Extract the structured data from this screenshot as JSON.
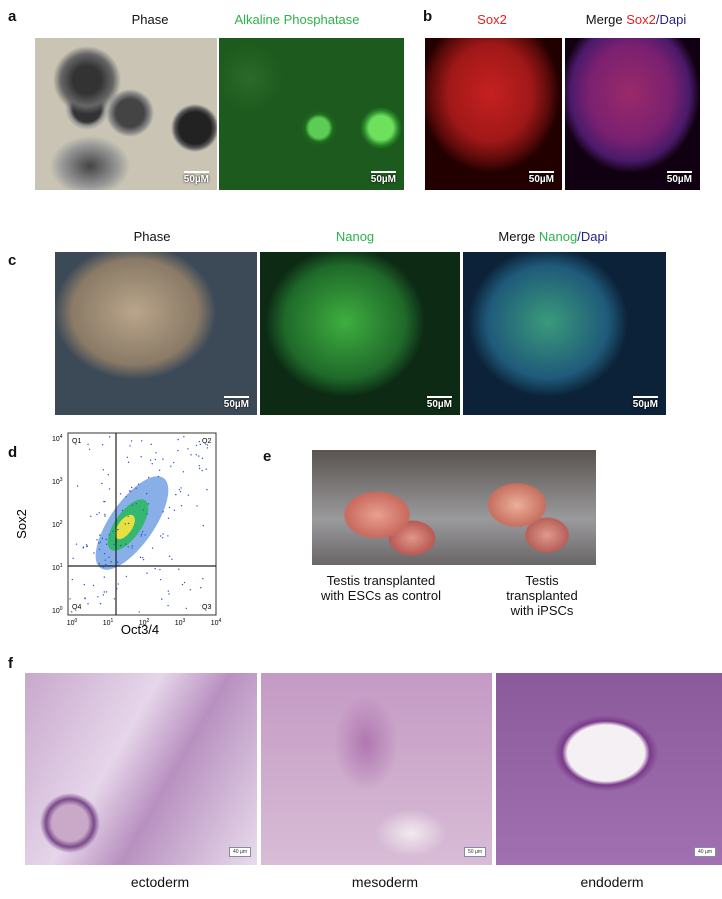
{
  "panels": {
    "a": {
      "label": "a",
      "titles": [
        "Phase",
        "Alkaline Phosphatase"
      ],
      "scale": [
        "50µM",
        "50µM"
      ]
    },
    "b": {
      "label": "b",
      "title1": "Sox2",
      "merge": "Merge",
      "merge_red": "Sox2",
      "merge_blue": "/Dapi",
      "scale": [
        "50µM",
        "50µM"
      ]
    },
    "c": {
      "label": "c",
      "titles": [
        "Phase",
        "Nanog"
      ],
      "merge": "Merge",
      "merge_green": "Nanog",
      "merge_blue": "/Dapi",
      "scale": [
        "50µM",
        "50µM",
        "50µM"
      ]
    },
    "d": {
      "label": "d",
      "ylabel": "Sox2",
      "xlabel": "Oct3/4",
      "quadrants": [
        "Q1",
        "Q2",
        "Q4",
        "Q3"
      ],
      "tick_base": "10",
      "tick_exps": [
        "0",
        "1",
        "2",
        "3",
        "4"
      ]
    },
    "e": {
      "label": "e",
      "caption1": [
        "Testis transplanted",
        "with ESCs as control"
      ],
      "caption2": [
        "Testis",
        "transplanted",
        "with iPSCs"
      ]
    },
    "f": {
      "label": "f",
      "names": [
        "ectoderm",
        "mesoderm",
        "endoderm"
      ],
      "scale": [
        "40 µm",
        "50 µm",
        "40 µm"
      ]
    }
  }
}
